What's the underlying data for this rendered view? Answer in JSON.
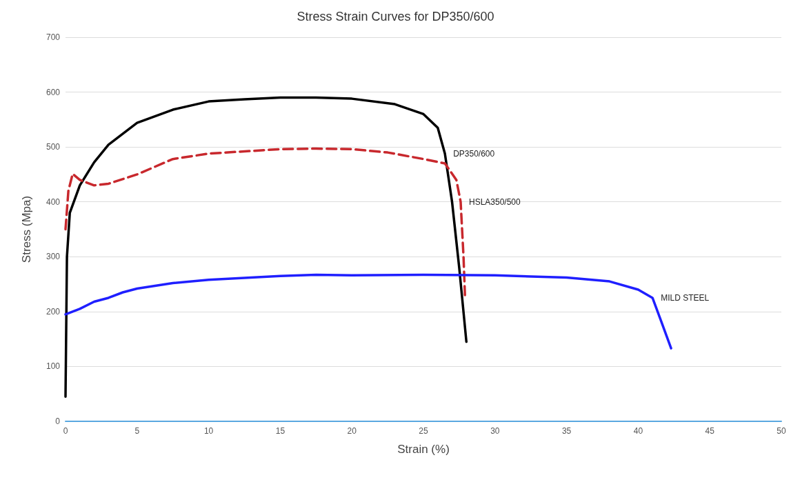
{
  "chart_data": {
    "type": "line",
    "title": "Stress Strain Curves for DP350/600",
    "xlabel": "Strain (%)",
    "ylabel": "Stress (Mpa)",
    "xlim": [
      0,
      50
    ],
    "xticks": [
      0,
      5,
      10,
      15,
      20,
      25,
      30,
      35,
      40,
      45,
      50
    ],
    "ylim": [
      0,
      700
    ],
    "yticks": [
      0,
      100,
      200,
      300,
      400,
      500,
      600,
      700
    ],
    "grid": "y",
    "marker": "none",
    "series": [
      {
        "name": "DP350/600",
        "color": "#000000",
        "line_style": "solid",
        "x": [
          0,
          0.1,
          0.3,
          1,
          2,
          3,
          5,
          7.5,
          10,
          12.5,
          15,
          17.5,
          20,
          23,
          25,
          26,
          26.5,
          27,
          27.5,
          28
        ],
        "values": [
          45,
          300,
          380,
          430,
          472,
          504,
          544,
          568,
          583,
          587,
          590,
          590,
          588,
          578,
          560,
          535,
          488,
          400,
          280,
          145
        ]
      },
      {
        "name": "HSLA350/500",
        "color": "#c8282d",
        "line_style": "dashed",
        "x": [
          0,
          0.2,
          0.5,
          1,
          2,
          3,
          5,
          7.5,
          10,
          15,
          17.5,
          20,
          22.5,
          25,
          26.5,
          27.3,
          27.6,
          27.8,
          27.9
        ],
        "values": [
          350,
          420,
          451,
          440,
          430,
          433,
          450,
          478,
          488,
          496,
          497,
          496,
          490,
          478,
          470,
          440,
          400,
          300,
          230
        ]
      },
      {
        "name": "MILD STEEL",
        "color": "#1f1fff",
        "line_style": "solid",
        "x": [
          0,
          1,
          2,
          3,
          4,
          5,
          7.5,
          10,
          15,
          17.5,
          20,
          25,
          30,
          35,
          38,
          40,
          41,
          41.5,
          42.3
        ],
        "values": [
          195,
          205,
          218,
          225,
          235,
          242,
          252,
          258,
          265,
          267,
          266,
          267,
          266,
          262,
          255,
          240,
          225,
          190,
          133
        ]
      }
    ]
  }
}
